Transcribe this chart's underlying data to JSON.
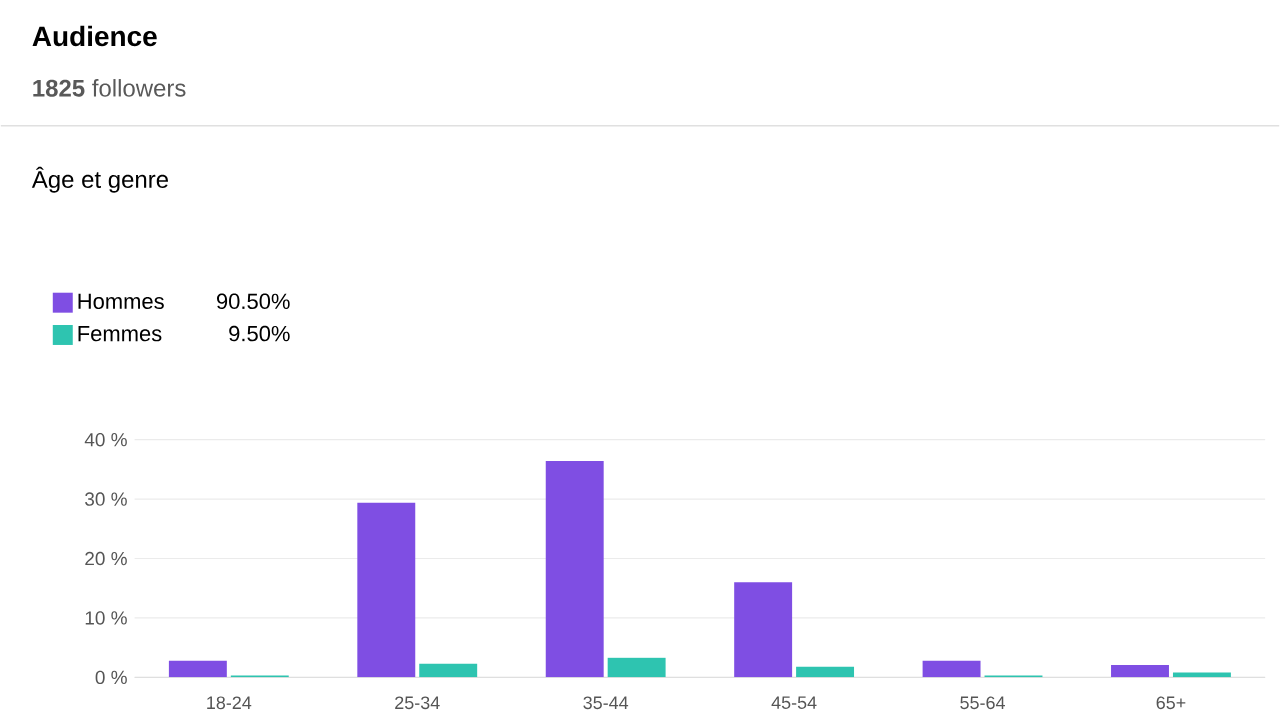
{
  "chart_data": {
    "type": "bar",
    "title": "Audience",
    "subtitle": "**1825** followers",
    "legend_title": "Âge et genre",
    "annotations": [
      "90.50%",
      "9.50%"
    ],
    "categories": [
      "18-24",
      "25-34",
      "35-44",
      "45-54",
      "55-64",
      "65+"
    ],
    "series": [
      {
        "name": "Hommes",
        "color": "#7f4ee3",
        "values": [
          2.8,
          29.4,
          36.4,
          16.0,
          2.8,
          2.1
        ]
      },
      {
        "name": "Femmes",
        "color": "#2ec4b0",
        "values": [
          0.3,
          2.3,
          3.3,
          1.8,
          0.3,
          0.8
        ]
      }
    ],
    "ylim": [
      0,
      40
    ],
    "yticks": [
      {
        "value": 0,
        "label": "0 %"
      },
      {
        "value": 10,
        "label": "10 %"
      },
      {
        "value": 20,
        "label": "20 %"
      },
      {
        "value": 30,
        "label": "30 %"
      },
      {
        "value": 40,
        "label": "40 %"
      }
    ],
    "grid": "y",
    "legend": "top left"
  }
}
